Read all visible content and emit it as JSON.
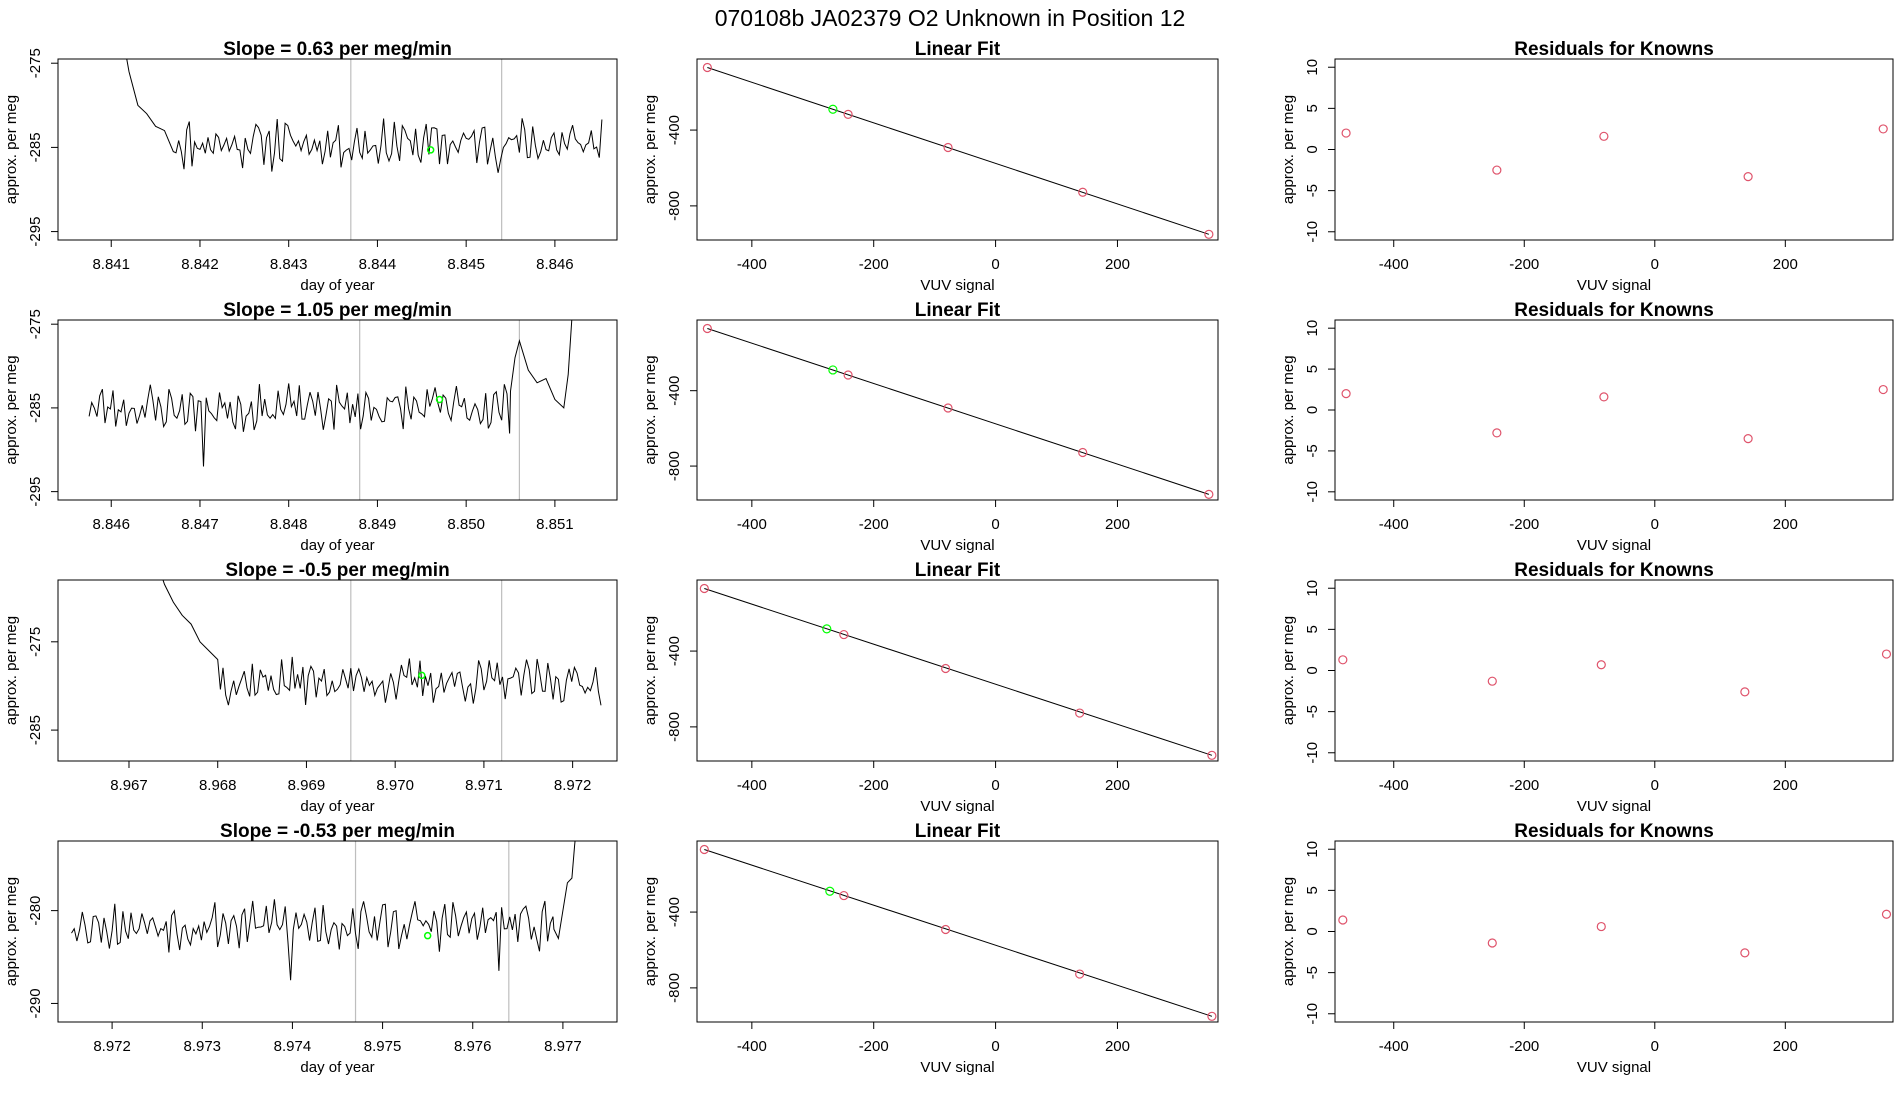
{
  "figure": {
    "title": "070108b      JA02379   O2 Unknown in Position  12"
  },
  "colors": {
    "trace": "#000000",
    "frame": "#000000",
    "vline": "#bebebe",
    "highlight": "#00ff00",
    "known_point": "#df536b"
  },
  "chart_data": [
    {
      "type": "line",
      "row": 0,
      "col": 0,
      "title": "Slope =  0.63  per meg/min",
      "xlabel": "day of year",
      "ylabel": "approx. per meg",
      "xlim": [
        8.8404,
        8.8467
      ],
      "ylim": [
        -296,
        -274.5
      ],
      "xticks": [
        8.841,
        8.842,
        8.843,
        8.844,
        8.845,
        8.846
      ],
      "xtick_labels": [
        "8.841",
        "8.842",
        "8.843",
        "8.844",
        "8.845",
        "8.846"
      ],
      "yticks": [
        -275,
        -285,
        -295
      ],
      "ytick_labels": [
        "-275",
        "-285",
        "-295"
      ],
      "vlines": [
        8.8437,
        8.8454
      ],
      "highlight": {
        "x": 8.8446,
        "y": -285.3
      },
      "series": [
        {
          "trace": {
            "x_start": 8.84115,
            "x_end": 8.84655,
            "base": -284.5,
            "start_points": [
              [
                8.84115,
                -273.0
              ],
              [
                8.8412,
                -276.0
              ],
              [
                8.8413,
                -280.0
              ],
              [
                8.8414,
                -281.0
              ],
              [
                8.8415,
                -282.5
              ],
              [
                8.8416,
                -283.0
              ],
              [
                8.8417,
                -285.5
              ]
            ],
            "amplitude": 2.2,
            "seed": 11,
            "step": 3e-05
          }
        }
      ]
    },
    {
      "type": "scatter",
      "row": 0,
      "col": 1,
      "title": "Linear Fit",
      "xlabel": "VUV signal",
      "ylabel": "approx. per meg",
      "xlim": [
        -490,
        365
      ],
      "ylim": [
        -980,
        -25
      ],
      "xticks": [
        -400,
        -200,
        0,
        200
      ],
      "xtick_labels": [
        "-400",
        "-200",
        "0",
        "200"
      ],
      "yticks": [
        -400,
        -800
      ],
      "ytick_labels": [
        "-400",
        "-800"
      ],
      "fit_line": [
        [
          -473,
          -70
        ],
        [
          350,
          -950
        ]
      ],
      "points": [
        [
          -473,
          -70
        ],
        [
          -242,
          -317
        ],
        [
          -78,
          -492
        ],
        [
          143,
          -728
        ],
        [
          350,
          -950
        ]
      ],
      "highlight": {
        "x": -267,
        "y": -290
      }
    },
    {
      "type": "scatter",
      "row": 0,
      "col": 2,
      "title": "Residuals for Knowns",
      "xlabel": "VUV signal",
      "ylabel": "approx. per meg",
      "xlim": [
        -490,
        365
      ],
      "ylim": [
        -11,
        11
      ],
      "xticks": [
        -400,
        -200,
        0,
        200
      ],
      "xtick_labels": [
        "-400",
        "-200",
        "0",
        "200"
      ],
      "yticks": [
        10,
        5,
        0,
        -5,
        -10
      ],
      "ytick_labels": [
        "10",
        "5",
        "0",
        "-5",
        "-10"
      ],
      "points": [
        [
          -473,
          2.0
        ],
        [
          -242,
          -2.5
        ],
        [
          -78,
          1.6
        ],
        [
          143,
          -3.3
        ],
        [
          350,
          2.5
        ]
      ]
    },
    {
      "type": "line",
      "row": 1,
      "col": 0,
      "title": "Slope =  1.05  per meg/min",
      "xlabel": "day of year",
      "ylabel": "approx. per meg",
      "xlim": [
        8.8454,
        8.8517
      ],
      "ylim": [
        -296,
        -274.5
      ],
      "xticks": [
        8.846,
        8.847,
        8.848,
        8.849,
        8.85,
        8.851
      ],
      "xtick_labels": [
        "8.846",
        "8.847",
        "8.848",
        "8.849",
        "8.850",
        "8.851"
      ],
      "yticks": [
        -275,
        -285,
        -295
      ],
      "ytick_labels": [
        "-275",
        "-285",
        "-295"
      ],
      "vlines": [
        8.8488,
        8.8506
      ],
      "highlight": {
        "x": 8.8497,
        "y": -284.0
      },
      "series": [
        {
          "trace": {
            "x_start": 8.84575,
            "x_end": 8.85125,
            "base": -285.0,
            "end_points": [
              [
                8.8505,
                -283.0
              ],
              [
                8.85055,
                -279.0
              ],
              [
                8.8506,
                -277.0
              ],
              [
                8.8507,
                -280.5
              ],
              [
                8.8508,
                -282.0
              ],
              [
                8.8509,
                -281.5
              ],
              [
                8.851,
                -284.0
              ],
              [
                8.8511,
                -285.0
              ],
              [
                8.85115,
                -281.0
              ],
              [
                8.8512,
                -273.0
              ]
            ],
            "amplitude": 2.0,
            "seed": 23,
            "step": 3e-05,
            "dips": [
              [
                8.84705,
                -292.0
              ]
            ]
          }
        }
      ]
    },
    {
      "type": "scatter",
      "row": 1,
      "col": 1,
      "title": "Linear Fit",
      "xlabel": "VUV signal",
      "ylabel": "approx. per meg",
      "xlim": [
        -490,
        365
      ],
      "ylim": [
        -980,
        -25
      ],
      "xticks": [
        -400,
        -200,
        0,
        200
      ],
      "xtick_labels": [
        "-400",
        "-200",
        "0",
        "200"
      ],
      "yticks": [
        -400,
        -800
      ],
      "ytick_labels": [
        "-400",
        "-800"
      ],
      "fit_line": [
        [
          -473,
          -70
        ],
        [
          350,
          -950
        ]
      ],
      "points": [
        [
          -473,
          -70
        ],
        [
          -242,
          -317
        ],
        [
          -78,
          -492
        ],
        [
          143,
          -728
        ],
        [
          350,
          -950
        ]
      ],
      "highlight": {
        "x": -267,
        "y": -290
      }
    },
    {
      "type": "scatter",
      "row": 1,
      "col": 2,
      "title": "Residuals for Knowns",
      "xlabel": "VUV signal",
      "ylabel": "approx. per meg",
      "xlim": [
        -490,
        365
      ],
      "ylim": [
        -11,
        11
      ],
      "xticks": [
        -400,
        -200,
        0,
        200
      ],
      "xtick_labels": [
        "-400",
        "-200",
        "0",
        "200"
      ],
      "yticks": [
        10,
        5,
        0,
        -5,
        -10
      ],
      "ytick_labels": [
        "10",
        "5",
        "0",
        "-5",
        "-10"
      ],
      "points": [
        [
          -473,
          2.0
        ],
        [
          -242,
          -2.8
        ],
        [
          -78,
          1.6
        ],
        [
          143,
          -3.5
        ],
        [
          350,
          2.5
        ]
      ]
    },
    {
      "type": "line",
      "row": 2,
      "col": 0,
      "title": "Slope =  -0.5  per meg/min",
      "xlabel": "day of year",
      "ylabel": "approx. per meg",
      "xlim": [
        8.9662,
        8.9725
      ],
      "ylim": [
        -288.5,
        -268
      ],
      "xticks": [
        8.967,
        8.968,
        8.969,
        8.97,
        8.971,
        8.972
      ],
      "xtick_labels": [
        "8.967",
        "8.968",
        "8.969",
        "8.970",
        "8.971",
        "8.972"
      ],
      "yticks": [
        -275,
        -285
      ],
      "ytick_labels": [
        "-275",
        "-285"
      ],
      "vlines": [
        8.9695,
        8.9712
      ],
      "highlight": {
        "x": 8.9703,
        "y": -278.8
      },
      "series": [
        {
          "trace": {
            "x_start": 8.96735,
            "x_end": 8.97235,
            "base": -279.5,
            "start_points": [
              [
                8.96735,
                -267.0
              ],
              [
                8.9674,
                -268.5
              ],
              [
                8.9675,
                -270.5
              ],
              [
                8.9676,
                -272.0
              ],
              [
                8.9677,
                -273.0
              ],
              [
                8.9678,
                -275.0
              ],
              [
                8.9679,
                -276.0
              ],
              [
                8.968,
                -277.0
              ]
            ],
            "amplitude": 1.8,
            "seed": 37,
            "step": 3e-05
          }
        }
      ]
    },
    {
      "type": "scatter",
      "row": 2,
      "col": 1,
      "title": "Linear Fit",
      "xlabel": "VUV signal",
      "ylabel": "approx. per meg",
      "xlim": [
        -490,
        365
      ],
      "ylim": [
        -980,
        -25
      ],
      "xticks": [
        -400,
        -200,
        0,
        200
      ],
      "xtick_labels": [
        "-400",
        "-200",
        "0",
        "200"
      ],
      "yticks": [
        -400,
        -800
      ],
      "ytick_labels": [
        "-400",
        "-800"
      ],
      "fit_line": [
        [
          -478,
          -70
        ],
        [
          355,
          -950
        ]
      ],
      "points": [
        [
          -478,
          -70
        ],
        [
          -249,
          -313
        ],
        [
          -82,
          -492
        ],
        [
          138,
          -727
        ],
        [
          355,
          -950
        ]
      ],
      "highlight": {
        "x": -277,
        "y": -283
      }
    },
    {
      "type": "scatter",
      "row": 2,
      "col": 2,
      "title": "Residuals for Knowns",
      "xlabel": "VUV signal",
      "ylabel": "approx. per meg",
      "xlim": [
        -490,
        365
      ],
      "ylim": [
        -11,
        11
      ],
      "xticks": [
        -400,
        -200,
        0,
        200
      ],
      "xtick_labels": [
        "-400",
        "-200",
        "0",
        "200"
      ],
      "yticks": [
        10,
        5,
        0,
        -5,
        -10
      ],
      "ytick_labels": [
        "10",
        "5",
        "0",
        "-5",
        "-10"
      ],
      "points": [
        [
          -478,
          1.3
        ],
        [
          -249,
          -1.3
        ],
        [
          -82,
          0.7
        ],
        [
          138,
          -2.6
        ],
        [
          355,
          2.0
        ]
      ]
    },
    {
      "type": "line",
      "row": 3,
      "col": 0,
      "title": "Slope =  -0.53  per meg/min",
      "xlabel": "day of year",
      "ylabel": "approx. per meg",
      "xlim": [
        8.9714,
        8.9776
      ],
      "ylim": [
        -292,
        -272.5
      ],
      "xticks": [
        8.972,
        8.973,
        8.974,
        8.975,
        8.976,
        8.977
      ],
      "xtick_labels": [
        "8.972",
        "8.973",
        "8.974",
        "8.975",
        "8.976",
        "8.977"
      ],
      "yticks": [
        -280,
        -290
      ],
      "ytick_labels": [
        "-280",
        "-290"
      ],
      "vlines": [
        8.9747,
        8.9764
      ],
      "highlight": {
        "x": 8.9755,
        "y": -282.7
      },
      "series": [
        {
          "trace": {
            "x_start": 8.97155,
            "x_end": 8.97715,
            "base": -281.5,
            "end_points": [
              [
                8.9769,
                -282.0
              ],
              [
                8.97695,
                -283.0
              ],
              [
                8.977,
                -280.0
              ],
              [
                8.97705,
                -277.0
              ],
              [
                8.9771,
                -276.5
              ],
              [
                8.97713,
                -273.0
              ],
              [
                8.97715,
                -271.0
              ]
            ],
            "amplitude": 1.9,
            "seed": 53,
            "step": 3e-05,
            "dips": [
              [
                8.97398,
                -287.5
              ],
              [
                8.97628,
                -286.5
              ]
            ]
          }
        }
      ]
    },
    {
      "type": "scatter",
      "row": 3,
      "col": 1,
      "title": "Linear Fit",
      "xlabel": "VUV signal",
      "ylabel": "approx. per meg",
      "xlim": [
        -490,
        365
      ],
      "ylim": [
        -980,
        -25
      ],
      "xticks": [
        -400,
        -200,
        0,
        200
      ],
      "xtick_labels": [
        "-400",
        "-200",
        "0",
        "200"
      ],
      "yticks": [
        -400,
        -800
      ],
      "ytick_labels": [
        "-400",
        "-800"
      ],
      "fit_line": [
        [
          -478,
          -70
        ],
        [
          355,
          -950
        ]
      ],
      "points": [
        [
          -478,
          -70
        ],
        [
          -249,
          -313
        ],
        [
          -82,
          -492
        ],
        [
          138,
          -727
        ],
        [
          355,
          -950
        ]
      ],
      "highlight": {
        "x": -272,
        "y": -290
      }
    },
    {
      "type": "scatter",
      "row": 3,
      "col": 2,
      "title": "Residuals for Knowns",
      "xlabel": "VUV signal",
      "ylabel": "approx. per meg",
      "xlim": [
        -490,
        365
      ],
      "ylim": [
        -11,
        11
      ],
      "xticks": [
        -400,
        -200,
        0,
        200
      ],
      "xtick_labels": [
        "-400",
        "-200",
        "0",
        "200"
      ],
      "yticks": [
        10,
        5,
        0,
        -5,
        -10
      ],
      "ytick_labels": [
        "10",
        "5",
        "0",
        "-5",
        "-10"
      ],
      "points": [
        [
          -478,
          1.4
        ],
        [
          -249,
          -1.4
        ],
        [
          -82,
          0.6
        ],
        [
          138,
          -2.6
        ],
        [
          355,
          2.1
        ]
      ]
    }
  ]
}
